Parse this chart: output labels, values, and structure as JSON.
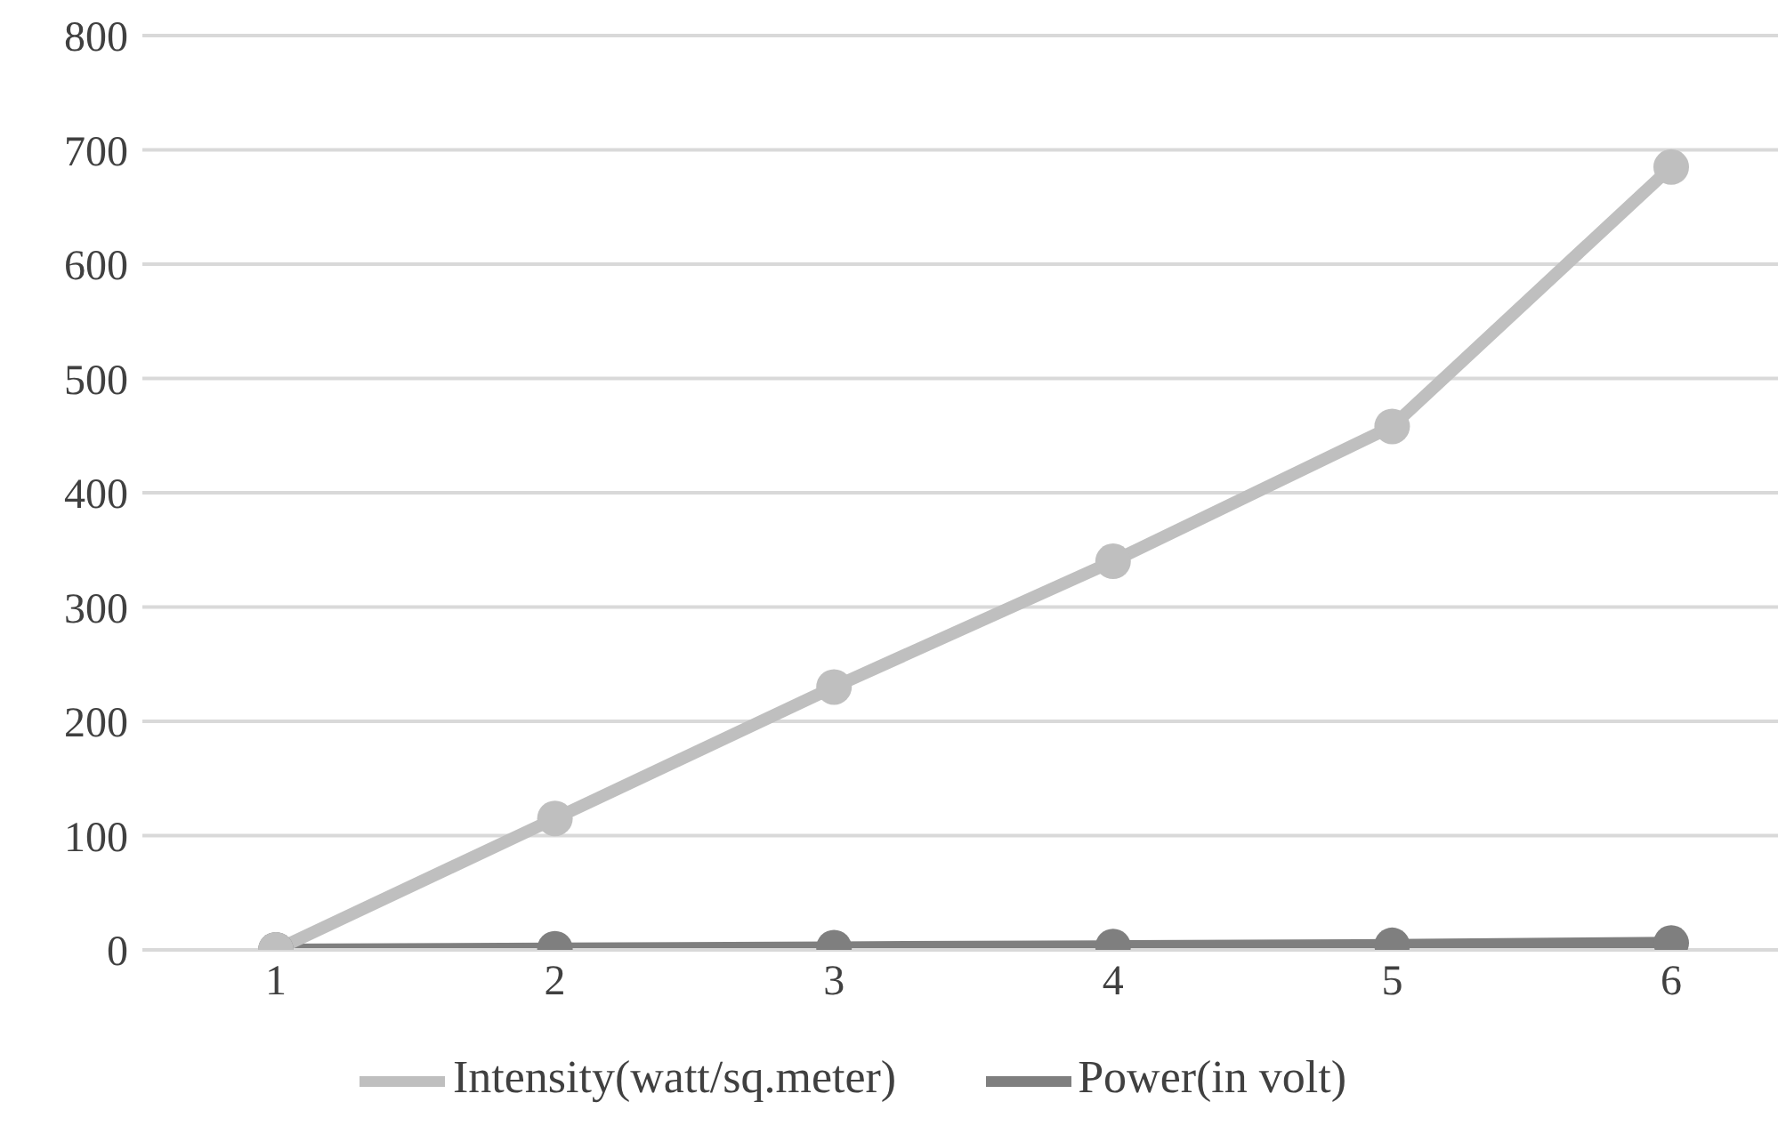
{
  "chart_data": {
    "type": "line",
    "categories": [
      "1",
      "2",
      "3",
      "4",
      "5",
      "6"
    ],
    "series": [
      {
        "name": "Power(in volt)",
        "color": "#7f7f7f",
        "values": [
          0,
          1,
          2,
          3,
          4,
          6
        ]
      },
      {
        "name": "Intensity(watt/sq.meter)",
        "color": "#bfbfbf",
        "values": [
          0,
          115,
          230,
          340,
          458,
          685
        ]
      }
    ],
    "ylim": [
      0,
      800
    ],
    "yticks": [
      0,
      100,
      200,
      300,
      400,
      500,
      600,
      700,
      800
    ],
    "grid": "y",
    "legend": "bottom",
    "marker": "circle",
    "line_style": "solid"
  }
}
